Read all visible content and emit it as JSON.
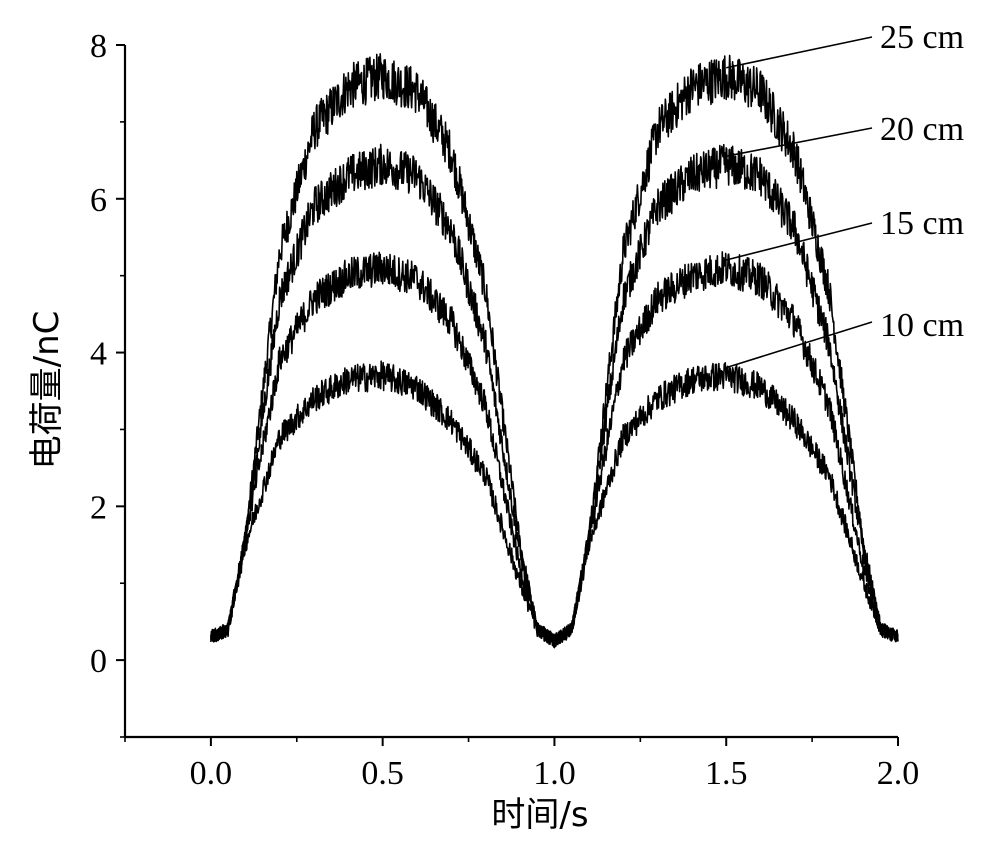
{
  "chart_data": {
    "type": "line",
    "xlabel": "时间/s",
    "ylabel": "电荷量/nC",
    "xlim": [
      -0.25,
      2.0
    ],
    "ylim": [
      -1.0,
      8.0
    ],
    "x_ticks": [
      "0.0",
      "0.5",
      "1.0",
      "1.5",
      "2.0"
    ],
    "y_ticks": [
      "0",
      "2",
      "4",
      "6",
      "8"
    ],
    "grid": false,
    "series": [
      {
        "name": "25 cm",
        "x": [
          0.0,
          0.05,
          0.1,
          0.2,
          0.3,
          0.4,
          0.5,
          0.6,
          0.7,
          0.8,
          0.9,
          0.95,
          1.0,
          1.05,
          1.1,
          1.2,
          1.3,
          1.4,
          1.5,
          1.6,
          1.7,
          1.8,
          1.9,
          1.95,
          2.0
        ],
        "y": [
          0.3,
          0.4,
          1.6,
          5.3,
          6.9,
          7.45,
          7.6,
          7.4,
          6.6,
          4.8,
          1.5,
          0.4,
          0.25,
          0.4,
          1.6,
          5.3,
          6.9,
          7.45,
          7.6,
          7.4,
          6.6,
          4.8,
          1.5,
          0.4,
          0.3
        ]
      },
      {
        "name": "20 cm",
        "x": [
          0.0,
          0.05,
          0.1,
          0.2,
          0.3,
          0.4,
          0.5,
          0.6,
          0.7,
          0.8,
          0.9,
          0.95,
          1.0,
          1.05,
          1.1,
          1.2,
          1.3,
          1.4,
          1.5,
          1.6,
          1.7,
          1.8,
          1.9,
          1.95,
          2.0
        ],
        "y": [
          0.3,
          0.4,
          1.6,
          4.7,
          5.9,
          6.3,
          6.45,
          6.3,
          5.6,
          4.1,
          1.4,
          0.4,
          0.25,
          0.4,
          1.6,
          4.7,
          5.9,
          6.3,
          6.45,
          6.3,
          5.6,
          4.1,
          1.4,
          0.4,
          0.3
        ]
      },
      {
        "name": "15 cm",
        "x": [
          0.0,
          0.05,
          0.1,
          0.2,
          0.3,
          0.4,
          0.5,
          0.6,
          0.7,
          0.8,
          0.9,
          0.95,
          1.0,
          1.05,
          1.1,
          1.2,
          1.3,
          1.4,
          1.5,
          1.6,
          1.7,
          1.8,
          1.9,
          1.95,
          2.0
        ],
        "y": [
          0.3,
          0.4,
          1.6,
          3.9,
          4.7,
          5.0,
          5.1,
          4.95,
          4.4,
          3.3,
          1.2,
          0.4,
          0.25,
          0.4,
          1.6,
          3.9,
          4.7,
          5.0,
          5.1,
          4.95,
          4.4,
          3.3,
          1.2,
          0.4,
          0.3
        ]
      },
      {
        "name": "10 cm",
        "x": [
          0.0,
          0.05,
          0.1,
          0.2,
          0.3,
          0.4,
          0.5,
          0.6,
          0.7,
          0.8,
          0.9,
          0.95,
          1.0,
          1.05,
          1.1,
          1.2,
          1.3,
          1.4,
          1.5,
          1.6,
          1.7,
          1.8,
          1.9,
          1.95,
          2.0
        ],
        "y": [
          0.3,
          0.4,
          1.5,
          2.9,
          3.4,
          3.65,
          3.7,
          3.55,
          3.1,
          2.4,
          1.0,
          0.4,
          0.25,
          0.4,
          1.5,
          2.9,
          3.4,
          3.65,
          3.7,
          3.55,
          3.1,
          2.4,
          1.0,
          0.4,
          0.3
        ]
      }
    ]
  }
}
